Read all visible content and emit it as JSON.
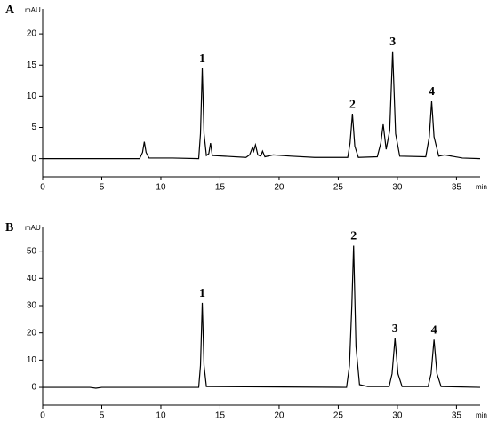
{
  "chart_data": [
    {
      "type": "line",
      "title": "A",
      "y_label": "mAU",
      "x_label": "min",
      "xlim": [
        0,
        37
      ],
      "xticks": [
        0,
        5,
        10,
        15,
        20,
        25,
        30,
        35
      ],
      "ylim": [
        -2.9,
        24
      ],
      "yticks": [
        0,
        5,
        10,
        15,
        20
      ],
      "series": [
        {
          "color": "#000000",
          "x": [
            0,
            4,
            8.2,
            8.45,
            8.6,
            8.75,
            9.0,
            11,
            13.2,
            13.35,
            13.5,
            13.65,
            13.85,
            14.05,
            14.2,
            14.35,
            17.2,
            17.5,
            17.75,
            17.85,
            18.0,
            18.2,
            18.45,
            18.6,
            18.8,
            19.5,
            21,
            23,
            25.8,
            26.0,
            26.2,
            26.4,
            26.7,
            28.3,
            28.6,
            28.8,
            29.05,
            29.35,
            29.6,
            29.85,
            30.2,
            32.4,
            32.7,
            32.9,
            33.1,
            33.5,
            34.0,
            35.5,
            37
          ],
          "values": [
            0,
            0,
            0,
            1.0,
            2.7,
            1.0,
            0.1,
            0.1,
            0,
            4,
            14.5,
            4,
            0.5,
            0.8,
            2.5,
            0.5,
            0.2,
            0.6,
            1.8,
            1.2,
            2.2,
            0.6,
            0.4,
            1.2,
            0.3,
            0.6,
            0.4,
            0.2,
            0.2,
            2.5,
            7.2,
            2.0,
            0.2,
            0.3,
            2.5,
            5.5,
            1.5,
            4.5,
            17.2,
            4,
            0.4,
            0.3,
            3.5,
            9.2,
            3.5,
            0.4,
            0.6,
            0.1,
            0
          ]
        }
      ],
      "annotations": [
        {
          "text": "1",
          "x": 13.5,
          "y": 14.5
        },
        {
          "text": "2",
          "x": 26.2,
          "y": 7.2
        },
        {
          "text": "3",
          "x": 29.6,
          "y": 17.2
        },
        {
          "text": "4",
          "x": 32.9,
          "y": 9.2
        }
      ]
    },
    {
      "type": "line",
      "title": "B",
      "y_label": "mAU",
      "x_label": "min",
      "xlim": [
        0,
        37
      ],
      "xticks": [
        0,
        5,
        10,
        15,
        20,
        25,
        30,
        35
      ],
      "ylim": [
        -6.5,
        59
      ],
      "yticks": [
        0,
        10,
        20,
        30,
        40,
        50
      ],
      "series": [
        {
          "color": "#000000",
          "x": [
            0,
            4,
            4.5,
            5,
            13.2,
            13.35,
            13.5,
            13.65,
            13.85,
            25.7,
            25.95,
            26.15,
            26.3,
            26.5,
            26.8,
            27.5,
            29.3,
            29.55,
            29.8,
            30.05,
            30.4,
            32.6,
            32.85,
            33.1,
            33.35,
            33.7,
            37
          ],
          "values": [
            0,
            0,
            -0.3,
            0,
            0,
            8,
            31,
            8,
            0.3,
            0,
            8,
            30,
            52,
            15,
            1,
            0.3,
            0.3,
            5,
            18,
            5,
            0.3,
            0.3,
            5,
            17.5,
            5,
            0.3,
            0
          ]
        }
      ],
      "annotations": [
        {
          "text": "1",
          "x": 13.5,
          "y": 31
        },
        {
          "text": "2",
          "x": 26.3,
          "y": 52
        },
        {
          "text": "3",
          "x": 29.8,
          "y": 18
        },
        {
          "text": "4",
          "x": 33.1,
          "y": 17.5
        }
      ]
    }
  ]
}
